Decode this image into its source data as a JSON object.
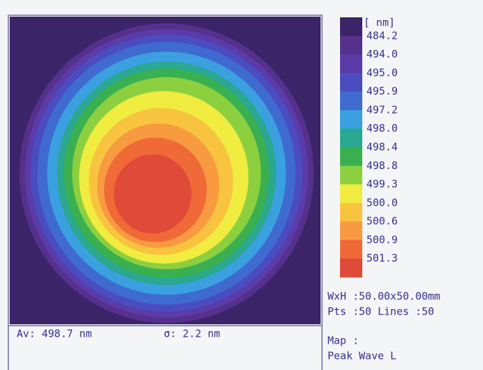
{
  "legend": {
    "unit": "[ nm]",
    "labels": [
      "484.2",
      "494.0",
      "495.0",
      "495.9",
      "497.2",
      "498.0",
      "498.4",
      "498.8",
      "499.3",
      "500.0",
      "500.6",
      "500.9",
      "501.3"
    ],
    "colors": [
      "#3b2468",
      "#55308c",
      "#5b3ba8",
      "#4a4cc0",
      "#3f6ad0",
      "#3aa0e0",
      "#2aa890",
      "#3ab050",
      "#8cd040",
      "#f0ec40",
      "#f8c440",
      "#f89a40",
      "#f06a38",
      "#e04a38"
    ]
  },
  "stats": {
    "average": "Av: 498.7 nm",
    "sigma": "σ: 2.2 nm"
  },
  "info": {
    "size": "WxH :50.00x50.00mm",
    "points": "Pts :50 Lines :50",
    "map_label": "Map :",
    "map_name": "Peak Wave L"
  }
}
